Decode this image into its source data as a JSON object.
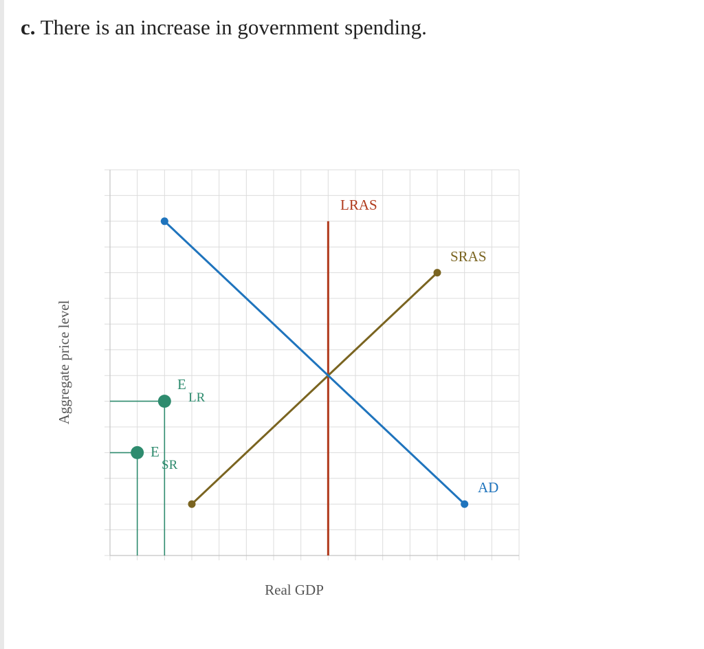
{
  "question": {
    "letter": "c.",
    "text": "There is an increase in government spending."
  },
  "chart_data": {
    "type": "line",
    "xlabel": "Real GDP",
    "ylabel": "Aggregate price level",
    "xlim": [
      0,
      15
    ],
    "ylim": [
      0,
      15
    ],
    "grid": true,
    "series": [
      {
        "name": "LRAS",
        "color": "#b03a1c",
        "points": [
          [
            8,
            0
          ],
          [
            8,
            13
          ]
        ]
      },
      {
        "name": "SRAS",
        "color": "#7a6420",
        "points": [
          [
            3,
            2
          ],
          [
            12,
            11
          ]
        ]
      },
      {
        "name": "AD",
        "color": "#1f74bd",
        "points": [
          [
            2,
            13
          ],
          [
            13,
            2
          ]
        ]
      }
    ],
    "points": [
      {
        "label": "E",
        "subscript": "LR",
        "x": 2,
        "y": 6,
        "color": "#2e8b6e"
      },
      {
        "label": "E",
        "subscript": "SR",
        "x": 1,
        "y": 4,
        "color": "#2e8b6e"
      }
    ]
  }
}
